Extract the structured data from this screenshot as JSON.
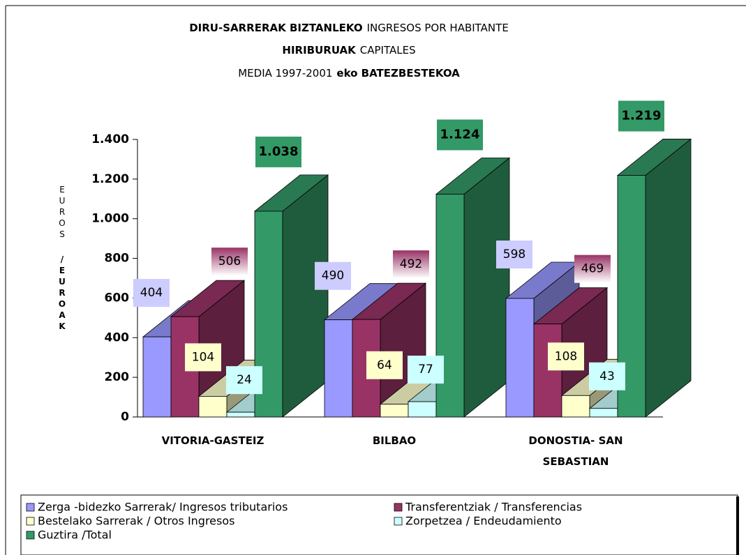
{
  "chart_data": {
    "type": "bar3d",
    "title_lines": [
      [
        {
          "text": "DIRU-SARRERAK BIZTANLEKO",
          "bold": true
        },
        {
          "text": "INGRESOS POR HABITANTE",
          "bold": false
        }
      ],
      [
        {
          "text": "HIRIBURUAK",
          "bold": true
        },
        {
          "text": "CAPITALES",
          "bold": false
        }
      ],
      [
        {
          "text": "MEDIA 1997-2001",
          "bold": false
        },
        {
          "text": "eko BATEZBESTEKOA",
          "bold": true
        }
      ]
    ],
    "y_label": [
      {
        "text": "EUROS",
        "bold": false
      },
      {
        "text": "/EUROAK",
        "bold": true
      }
    ],
    "categories": [
      "VITORIA-GASTEIZ",
      "BILBAO",
      "DONOSTIA- SAN SEBASTIAN"
    ],
    "series": [
      {
        "name": "Zerga -bidezko Sarrerak/ Ingresos tributarios",
        "color": "#9999ff",
        "values": [
          404,
          490,
          598
        ]
      },
      {
        "name": "Transferentziak / Transferencias",
        "color": "#993366",
        "values": [
          506,
          492,
          469
        ]
      },
      {
        "name": "Bestelako Sarrerak / Otros Ingresos",
        "color": "#ffffcc",
        "values": [
          104,
          64,
          108
        ]
      },
      {
        "name": "Zorpetzea / Endeudamiento",
        "color": "#ccffff",
        "values": [
          24,
          77,
          43
        ]
      },
      {
        "name": "Guztira /Total",
        "color": "#339966",
        "values": [
          1038,
          1124,
          1219
        ],
        "value_labels": [
          "1.038",
          "1.124",
          "1.219"
        ]
      }
    ],
    "ylim": [
      0,
      1400
    ],
    "yticks": [
      0,
      200,
      400,
      600,
      800,
      {
        "value": 1000,
        "label": "1.000"
      },
      {
        "value": 1200,
        "label": "1.200"
      },
      {
        "value": 1400,
        "label": "1.400"
      }
    ],
    "legend": "bottom"
  }
}
